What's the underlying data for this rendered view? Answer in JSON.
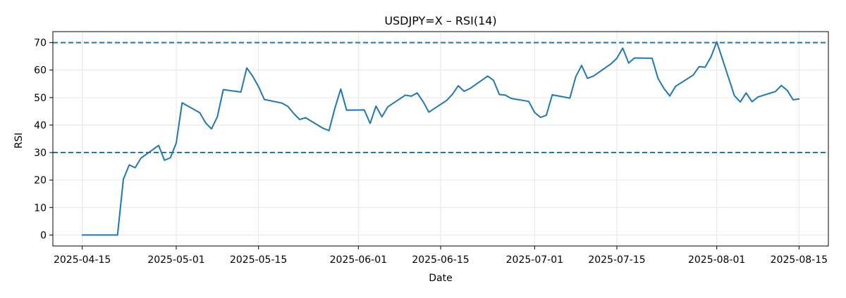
{
  "chart_data": {
    "type": "line",
    "title": "USDJPY=X – RSI(14)",
    "xlabel": "Date",
    "ylabel": "RSI",
    "ylim": [
      -4,
      74
    ],
    "xlim": [
      "2025-04-10",
      "2025-08-20"
    ],
    "grid": true,
    "y_ticks": [
      0,
      10,
      20,
      30,
      40,
      50,
      60,
      70
    ],
    "x_ticks": [
      "2025-04-15",
      "2025-05-01",
      "2025-05-15",
      "2025-06-01",
      "2025-06-15",
      "2025-07-01",
      "2025-07-15",
      "2025-08-01",
      "2025-08-15"
    ],
    "reference_lines": [
      {
        "y": 70,
        "style": "dashed"
      },
      {
        "y": 30,
        "style": "dashed"
      }
    ],
    "colors": {
      "series": "#1f77b4",
      "reference": "#1f77b4",
      "grid": "#e6e6e6",
      "axes": "#000000"
    },
    "series": [
      {
        "x": [
          "2025-04-15",
          "2025-04-16",
          "2025-04-17",
          "2025-04-18",
          "2025-04-21",
          "2025-04-22",
          "2025-04-23",
          "2025-04-24",
          "2025-04-25",
          "2025-04-28",
          "2025-04-29",
          "2025-04-30",
          "2025-05-01",
          "2025-05-02",
          "2025-05-05",
          "2025-05-06",
          "2025-05-07",
          "2025-05-08",
          "2025-05-09",
          "2025-05-12",
          "2025-05-13",
          "2025-05-14",
          "2025-05-15",
          "2025-05-16",
          "2025-05-19",
          "2025-05-20",
          "2025-05-21",
          "2025-05-22",
          "2025-05-23",
          "2025-05-26",
          "2025-05-27",
          "2025-05-28",
          "2025-05-29",
          "2025-05-30",
          "2025-06-02",
          "2025-06-03",
          "2025-06-04",
          "2025-06-05",
          "2025-06-06",
          "2025-06-09",
          "2025-06-10",
          "2025-06-11",
          "2025-06-12",
          "2025-06-13",
          "2025-06-16",
          "2025-06-17",
          "2025-06-18",
          "2025-06-19",
          "2025-06-20",
          "2025-06-23",
          "2025-06-24",
          "2025-06-25",
          "2025-06-26",
          "2025-06-27",
          "2025-06-30",
          "2025-07-01",
          "2025-07-02",
          "2025-07-03",
          "2025-07-04",
          "2025-07-07",
          "2025-07-08",
          "2025-07-09",
          "2025-07-10",
          "2025-07-11",
          "2025-07-14",
          "2025-07-15",
          "2025-07-16",
          "2025-07-17",
          "2025-07-18",
          "2025-07-21",
          "2025-07-22",
          "2025-07-23",
          "2025-07-24",
          "2025-07-25",
          "2025-07-28",
          "2025-07-29",
          "2025-07-30",
          "2025-07-31",
          "2025-08-01",
          "2025-08-04",
          "2025-08-05",
          "2025-08-06",
          "2025-08-07",
          "2025-08-08",
          "2025-08-11",
          "2025-08-12",
          "2025-08-13",
          "2025-08-14",
          "2025-08-15"
        ],
        "values": [
          0,
          0,
          0,
          0,
          0,
          20.3,
          25.5,
          24.5,
          28.0,
          32.6,
          27.2,
          28.1,
          33.5,
          48.1,
          44.5,
          40.8,
          38.6,
          43.0,
          52.9,
          52.0,
          60.8,
          57.8,
          54.0,
          49.3,
          48.0,
          46.8,
          44.2,
          42.0,
          42.7,
          38.8,
          38.0,
          46.1,
          53.1,
          45.4,
          45.5,
          40.6,
          46.9,
          43.0,
          46.6,
          50.9,
          50.5,
          51.7,
          48.6,
          44.7,
          48.9,
          51.2,
          54.3,
          52.3,
          53.3,
          57.8,
          56.3,
          51.1,
          50.9,
          49.7,
          48.6,
          44.6,
          42.8,
          43.6,
          51.0,
          49.8,
          57.6,
          61.7,
          57.0,
          57.8,
          62.3,
          64.3,
          68.0,
          62.6,
          64.4,
          64.3,
          57.0,
          53.3,
          50.6,
          54.1,
          58.2,
          61.3,
          61.0,
          64.7,
          70.3,
          50.7,
          48.4,
          51.7,
          48.5,
          50.2,
          52.2,
          54.4,
          52.6,
          49.2,
          49.5
        ]
      }
    ]
  }
}
